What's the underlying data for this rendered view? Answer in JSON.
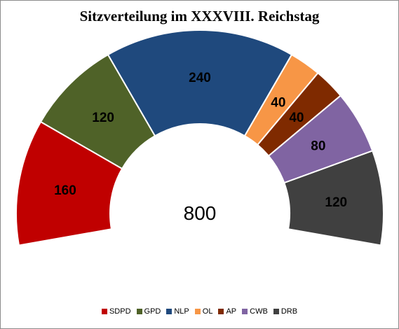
{
  "chart_data": {
    "type": "pie",
    "variant": "semicircle-donut",
    "title": "Sitzverteilung im XXXVIII. Reichstag",
    "total": 800,
    "total_label": "800",
    "series": [
      {
        "name": "SDPD",
        "value": 160,
        "label": "160",
        "color": "#c00000"
      },
      {
        "name": "GPD",
        "value": 120,
        "label": "120",
        "color": "#4f6228"
      },
      {
        "name": "NLP",
        "value": 240,
        "label": "240",
        "color": "#1f497d"
      },
      {
        "name": "OL",
        "value": 40,
        "label": "40",
        "color": "#f79646"
      },
      {
        "name": "AP",
        "value": 40,
        "label": "40",
        "color": "#7f2a00"
      },
      {
        "name": "CWB",
        "value": 80,
        "label": "80",
        "color": "#8064a2"
      },
      {
        "name": "DRB",
        "value": 120,
        "label": "120",
        "color": "#404040"
      }
    ],
    "legend_position": "bottom"
  }
}
